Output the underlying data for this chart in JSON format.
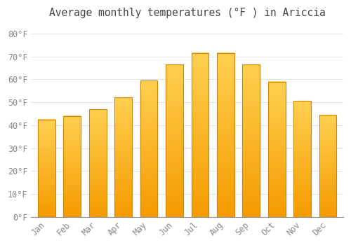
{
  "title": "Average monthly temperatures (°F ) in Ariccia",
  "months": [
    "Jan",
    "Feb",
    "Mar",
    "Apr",
    "May",
    "Jun",
    "Jul",
    "Aug",
    "Sep",
    "Oct",
    "Nov",
    "Dec"
  ],
  "values": [
    42.5,
    44.0,
    47.0,
    52.0,
    59.5,
    66.5,
    71.5,
    71.5,
    66.5,
    59.0,
    50.5,
    44.5
  ],
  "bar_color_top": "#FFD050",
  "bar_color_bottom": "#F59B00",
  "bar_edge_color": "#D4830A",
  "background_color": "#FFFFFF",
  "grid_color": "#DDDDDD",
  "ylim": [
    0,
    85
  ],
  "yticks": [
    0,
    10,
    20,
    30,
    40,
    50,
    60,
    70,
    80
  ],
  "title_fontsize": 10.5,
  "tick_fontsize": 8.5,
  "tick_color": "#888888",
  "title_color": "#444444"
}
